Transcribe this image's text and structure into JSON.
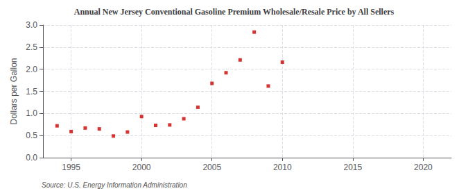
{
  "chart_data": {
    "type": "scatter",
    "title": "Annual New Jersey Conventional Gasoline Premium Wholesale/Resale Price by All Sellers",
    "ylabel": "Dollars per Gallon",
    "annotations": [
      "Source: U.S. Energy Information Administration"
    ],
    "x": [
      1994,
      1995,
      1996,
      1997,
      1998,
      1999,
      2000,
      2001,
      2002,
      2003,
      2004,
      2005,
      2006,
      2007,
      2008,
      2009,
      2010
    ],
    "values": [
      0.72,
      0.59,
      0.67,
      0.65,
      0.49,
      0.58,
      0.93,
      0.73,
      0.74,
      0.88,
      1.14,
      1.68,
      1.92,
      2.21,
      2.84,
      1.62,
      2.16
    ],
    "color": "#cc0000",
    "marker": "square",
    "xlim": [
      1993,
      2022
    ],
    "xticks": [
      1995,
      2000,
      2005,
      2010,
      2015,
      2020
    ],
    "ylim": [
      0.0,
      3.0
    ],
    "yticks": [
      {
        "value": 0.0,
        "label": "0.0"
      },
      0.5,
      {
        "value": 1.0,
        "label": "1.0"
      },
      1.5,
      {
        "value": 2.0,
        "label": "2.0"
      },
      2.5,
      {
        "value": 3.0,
        "label": "3.0"
      }
    ],
    "grid": true
  }
}
